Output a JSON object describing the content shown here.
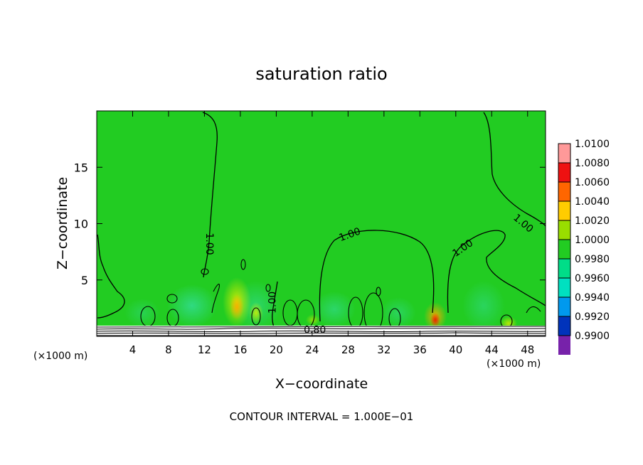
{
  "chart_data": {
    "type": "heatmap",
    "title": "saturation ratio",
    "xlabel": "X−coordinate",
    "ylabel": "Z−coordinate",
    "x_unit_left": "(×1000 m)",
    "x_unit_right": "(×1000 m)",
    "xlim": [
      0,
      50
    ],
    "ylim": [
      0,
      20
    ],
    "x_ticks": [
      4,
      8,
      12,
      16,
      20,
      24,
      28,
      32,
      36,
      40,
      44,
      48
    ],
    "y_ticks": [
      5,
      10,
      15
    ],
    "footer": "CONTOUR INTERVAL = 1.000E−01",
    "colorbar": {
      "levels": [
        "1.0100",
        "1.0080",
        "1.0060",
        "1.0040",
        "1.0020",
        "1.0000",
        "0.9980",
        "0.9960",
        "0.9940",
        "0.9920",
        "0.9900"
      ],
      "colors": [
        "#ff9999",
        "#ee1111",
        "#ff6600",
        "#ffcc00",
        "#99dd00",
        "#22cc22",
        "#00dd88",
        "#00e0c0",
        "#0099ee",
        "#0033bb",
        "#7722aa"
      ]
    },
    "contour_labels": [
      {
        "text": "1.00",
        "x": 12.5,
        "z": 8.2,
        "rotate": 90
      },
      {
        "text": "1.00",
        "x": 28.2,
        "z": 9.0,
        "rotate": -20
      },
      {
        "text": "1.00",
        "x": 40.8,
        "z": 7.8,
        "rotate": -35
      },
      {
        "text": "1.00",
        "x": 47.5,
        "z": 10.0,
        "rotate": 40
      },
      {
        "text": "1.00",
        "x": 19.6,
        "z": 3.0,
        "rotate": -90
      },
      {
        "text": "0.80",
        "x": 24.3,
        "z": 0.55,
        "rotate": 0
      }
    ],
    "background_value": 1.0
  }
}
